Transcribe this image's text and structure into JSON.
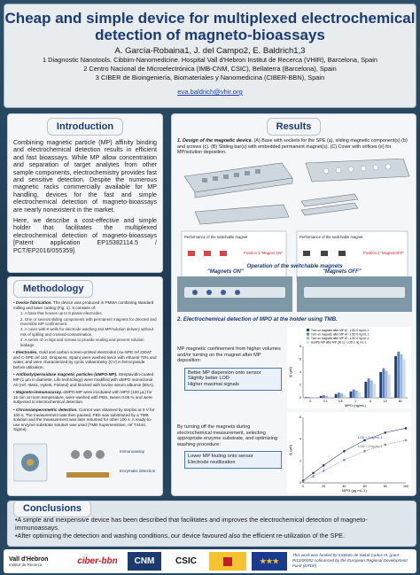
{
  "header": {
    "title_line1": "Cheap and simple device for multiplexed electrochemical",
    "title_line2": "detection of magneto-bioassays",
    "authors": "A. García-Robaina1, J. del Campo2, E. Baldrich1,3",
    "affiliations": [
      "1 Diagnostic Nanotools. Cibbim-Nanomedicine. Hospital Vall d'Hebron Institut de Recerca (VHIR), Barcelona, Spain",
      "2 Centro Nacional de Microelectrónica (IMB-CNM, CSIC), Bellaterra (Barcelona), Spain",
      "3 CIBER de Bioingeniería, Biomateriales y Nanomedicina (CIBER-BBN), Spain"
    ],
    "email": "eva.baldrich@vhir.org"
  },
  "introduction": {
    "heading": "Introduction",
    "paragraphs": [
      "Combining magnetic particle (MP) affinity binding and electrochemical detection results in efficient and fast bioassays. While MP allow concentration and separation of target analytes from other sample components, electrochemistry provides fast and sensitive detection. Despite the numerous magnetic racks commercially available for MP handling, devices for the fast and simple electrochemical detection of magneto-bioassays are nearly nonexistent in the market.",
      "Here, we describe a cost-effective and simple holder that facilitates the multiplexed electrochemical detection of magneto-bioassays [Patent application EP15382114.5 / PCT/EP2016/055359]."
    ]
  },
  "methodology": {
    "heading": "Methodology",
    "items": [
      {
        "title": "Device fabrication.",
        "text": "The device was produced in PMMA combining standard milling and laser cutting (Fig. 1). It consists of:"
      },
      {
        "sub": true,
        "text": "1. A base that houses up to 8 planar electrodes."
      },
      {
        "sub": true,
        "text": "2. One or several sliding components with permanent magnets for directed and reversible MP confinement."
      },
      {
        "sub": true,
        "text": "3. A cover with 8 wells for electrode washing and MP/solution delivery without risk of spilling and crossed-contamination."
      },
      {
        "sub": true,
        "text": "4. A series of o-rings and screws to provide sealing and prevent solution leakage."
      },
      {
        "title": "Electrodes.",
        "text": "Gold and carbon screen-printed electrodes (Au-SPE ref 220AT and C-SPE ref 110, Dropsens, Spain) were washed twice with ethanol 70% and water, and were characterized by cyclic voltammetry (CV) in ferrocyanide before utilization."
      },
      {
        "title": "Antibody/peroxidase magnetic particles (αMPO-MP).",
        "text": "Streptavidin-coated MP (1 µm in diameter, Life technology) were modified with αMPO monoclonal Ab (ref. 4M41, Hytest, Finland) and blocked with bovine serum albumin (BSA)."
      },
      {
        "title": "Magneto-immunoassay.",
        "text": "αMPO-MP were incubated with MPO (100 µL) for 15 min at room temperature, were washed with PBS, tween 0.05 % and were subjected to electrochemical detection."
      },
      {
        "title": "Chronoamperometric detection.",
        "text": "Current was obtained by steplos at 0 V for 100 s. The measurement was then paused, PBS was substituted by a TMB solution and the measurement was later resumed for other 100 s. A ready-to-use enzyme substrate solution was used (TMB Supersensitive, ref T4444, Sigma)."
      }
    ],
    "scheme_labels": [
      "Immunoassay",
      "Enzymatic detection"
    ]
  },
  "results": {
    "heading": "Results",
    "fig1_caption_title": "1. Design of the magnetic device.",
    "fig1_caption_text": "(A) Base with sockets for the SPE (a), sliding magnetic component(s) (b) and screws (c). (B) Sliding bar(s) with embedded permanent magnet(s). (C) Cover with orifices (e) for MP/solution deposition.",
    "diagram_label_a": "Performance of the switchable magnet",
    "diagram_label_b": "Performance of the switchable magnet",
    "position1": "Position 1\n\"Magnet ON\"",
    "position2": "Position 2\n\"Magnet OFF\"",
    "operation_title": "Operation of the switchable magnets",
    "magnets_on": "\"Magnets ON\"",
    "magnets_off": "\"Magnets OFF\"",
    "fig2_heading": "2. Electrochemical detection of MPO at the holder using TMB.",
    "bullet1": "MP magnetic confinement from higher volumes and/or turning on the magnet after MP deposition:",
    "bullet1_subs": [
      "Better MP dispersion onto sensor",
      "Slightly better LOD",
      "Higher maximal signals"
    ],
    "bullet2": "By turning off the magnets during electrochemical measurement, selecting appropriate enzyme substrate, and optimizing washing procedure:",
    "bullet2_subs": [
      "Lower MP fouling onto sensor",
      "Electrode reutilization"
    ],
    "legend_labels": [
      "Turn on magnets after MP x2 - LOD 0 ng mL-1",
      "Turn on magnets after MP x4 - LOD 0 ng mL-1",
      "Turn on magnets after MP x2 - LOD 0 ng mL-1",
      "AuSPE MP after MP (30 s) - LOD 0 ng mL-1"
    ],
    "chart1_ylabel": "|I| (µA)",
    "chart1_xlabel": "MPO (ng/mL)",
    "chart2_ylabel": "|I| (µA)",
    "chart2_xlabel": "MPO (µg mL-1)",
    "chart2_annotation1": "LOD = 0 ng mL-1",
    "chart2_annotation2": "LOD = 0 ng mL-1"
  },
  "conclusions": {
    "heading": "Conclusions",
    "items": [
      "A simple and inexpensive device has been described that facilitates and improves the electrochemical detection of magneto-immunoassays.",
      "After optimizing the detection and washing conditions, our device favoured also the efficient re-utilization of the SPE."
    ]
  },
  "logos": {
    "vall": "Vall d'Hebron",
    "vall_sub": "Institut de Recerca",
    "ciber": "ciber-bbn",
    "cnm": "CNM",
    "csic": "CSIC",
    "funding": "This work was funded by Instituto de Salud Carlos III, grant PI13/00052 cofinanced by the European Regional Development Fund (ERDF)"
  },
  "colors": {
    "title": "#1a3a70",
    "background": "#27445c",
    "accent_link": "#1a3ea8",
    "bars": [
      "#1f3f7a",
      "#5b7fb8",
      "#9fb6d8",
      "#d0d9e8"
    ]
  },
  "chart_data": [
    {
      "type": "bar",
      "title": "",
      "xlabel": "MPO (ng/mL)",
      "ylabel": "|I| (µA)",
      "categories": [
        "0",
        "0.1",
        "0.5",
        "1",
        "5",
        "10",
        "50"
      ],
      "series": [
        {
          "name": "Turn on magnets after MP x2 - LOD 0 ng mL-1",
          "values": [
            0.1,
            0.3,
            0.6,
            1.0,
            2.5,
            4.0,
            6.5
          ]
        },
        {
          "name": "Turn on magnets after MP x4 - LOD 0 ng mL-1",
          "values": [
            0.1,
            0.4,
            0.8,
            1.3,
            3.0,
            4.6,
            7.2
          ]
        },
        {
          "name": "Turn on magnets after MP x2 - LOD 0 ng mL-1",
          "values": [
            0.1,
            0.3,
            0.7,
            1.1,
            2.7,
            4.2,
            6.8
          ]
        },
        {
          "name": "AuSPE MP after MP (30 s) - LOD 0 ng mL-1",
          "values": [
            0.1,
            0.2,
            0.5,
            0.9,
            2.2,
            3.6,
            6.0
          ]
        }
      ],
      "ylim": [
        0,
        8
      ]
    },
    {
      "type": "scatter",
      "title": "",
      "xlabel": "MPO (µg mL-1)",
      "ylabel": "|I| (µA)",
      "series": [
        {
          "name": "",
          "x": [
            0,
            10,
            20,
            40,
            60,
            80,
            100
          ],
          "y": [
            0.2,
            0.9,
            1.6,
            2.9,
            3.9,
            4.6,
            5.0
          ]
        },
        {
          "name": "",
          "x": [
            0,
            10,
            20,
            40,
            60,
            80,
            100
          ],
          "y": [
            0.1,
            0.6,
            1.1,
            2.1,
            2.9,
            3.5,
            3.9
          ]
        }
      ],
      "xlim": [
        0,
        100
      ],
      "ylim": [
        0,
        6
      ]
    }
  ]
}
